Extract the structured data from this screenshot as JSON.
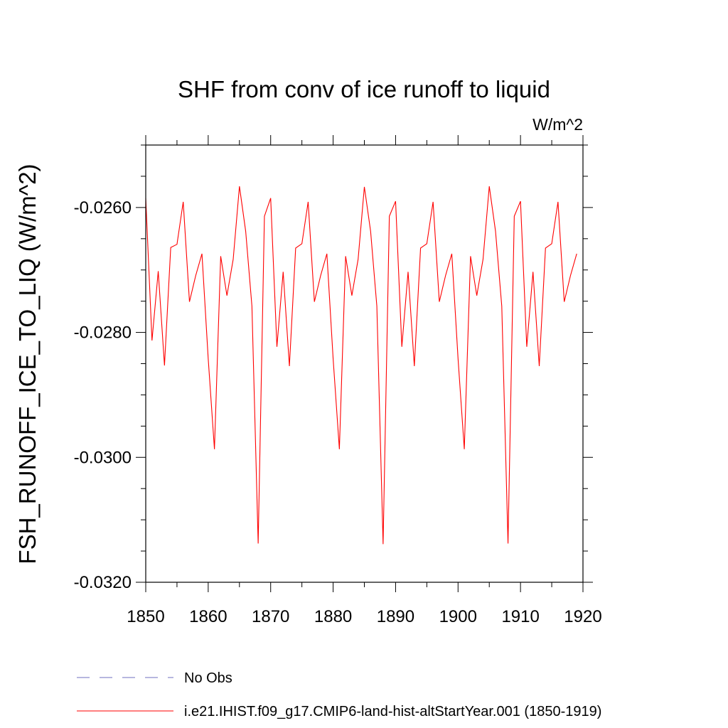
{
  "chart_data": {
    "type": "line",
    "title": "SHF from conv of ice runoff to liquid",
    "units_label": "W/m^2",
    "ylabel": "FSH_RUNOFF_ICE_TO_LIQ  (W/m^2)",
    "xlabel": "",
    "xlim": [
      1850,
      1920
    ],
    "ylim": [
      -0.032,
      -0.025
    ],
    "x_ticks": [
      1850,
      1860,
      1870,
      1880,
      1890,
      1900,
      1910,
      1920
    ],
    "x_tick_labels": [
      "1850",
      "1860",
      "1870",
      "1880",
      "1890",
      "1900",
      "1910",
      "1920"
    ],
    "y_ticks": [
      -0.032,
      -0.03,
      -0.028,
      -0.026
    ],
    "y_tick_labels": [
      "-0.0320",
      "-0.0300",
      "-0.0280",
      "-0.0260"
    ],
    "grid": false,
    "legend_position": "bottom-left",
    "series": [
      {
        "name": "No Obs",
        "color": "#6f6fbf",
        "dash": "dashed",
        "x": [],
        "y": []
      },
      {
        "name": "i.e21.IHIST.f09_g17.CMIP6-land-hist-altStartYear.001 (1850-1919)",
        "color": "#ff0000",
        "dash": "solid",
        "x": [
          1850,
          1851,
          1852,
          1853,
          1854,
          1855,
          1856,
          1857,
          1858,
          1859,
          1860,
          1861,
          1862,
          1863,
          1864,
          1865,
          1866,
          1867,
          1868,
          1869,
          1870,
          1871,
          1872,
          1873,
          1874,
          1875,
          1876,
          1877,
          1878,
          1879,
          1880,
          1881,
          1882,
          1883,
          1884,
          1885,
          1886,
          1887,
          1888,
          1889,
          1890,
          1891,
          1892,
          1893,
          1894,
          1895,
          1896,
          1897,
          1898,
          1899,
          1900,
          1901,
          1902,
          1903,
          1904,
          1905,
          1906,
          1907,
          1908,
          1909,
          1910,
          1911,
          1912,
          1913,
          1914,
          1915,
          1916,
          1917,
          1918,
          1919
        ],
        "y": [
          -0.02585,
          -0.02813,
          -0.02702,
          -0.02853,
          -0.02664,
          -0.02659,
          -0.02591,
          -0.02751,
          -0.02709,
          -0.02674,
          -0.02842,
          -0.02987,
          -0.02678,
          -0.02741,
          -0.02683,
          -0.02566,
          -0.02638,
          -0.02758,
          -0.03138,
          -0.02614,
          -0.02585,
          -0.02823,
          -0.02703,
          -0.02854,
          -0.02665,
          -0.02658,
          -0.02591,
          -0.02751,
          -0.02709,
          -0.02674,
          -0.02842,
          -0.02987,
          -0.02678,
          -0.02741,
          -0.02683,
          -0.02567,
          -0.02638,
          -0.02758,
          -0.03139,
          -0.02614,
          -0.0259,
          -0.02823,
          -0.02703,
          -0.02854,
          -0.02665,
          -0.02658,
          -0.02591,
          -0.02751,
          -0.02709,
          -0.02674,
          -0.02842,
          -0.02987,
          -0.02678,
          -0.02741,
          -0.02683,
          -0.02566,
          -0.02638,
          -0.02758,
          -0.03138,
          -0.02614,
          -0.0259,
          -0.02823,
          -0.02703,
          -0.02854,
          -0.02665,
          -0.02658,
          -0.02591,
          -0.02751,
          -0.02709,
          -0.02674
        ]
      }
    ]
  }
}
